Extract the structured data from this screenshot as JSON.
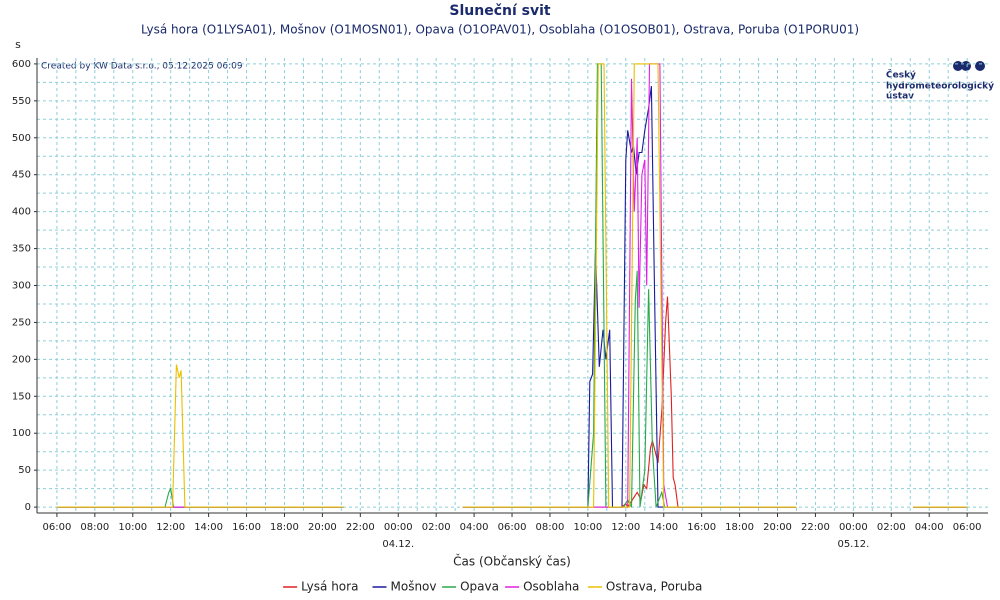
{
  "chart_data": {
    "type": "line",
    "title": "Sluneční svit",
    "subtitle": "Lysá hora (O1LYSA01), Mošnov (O1MOSN01), Opava (O1OPAV01), Osoblaha (O1OSOB01), Ostrava, Poruba (O1PORU01)",
    "y_unit": "s",
    "xlabel": "Čas (Občanský čas)",
    "annotation": "Created by KW Data s.r.o., 05.12.2025 06:09",
    "logo_lines": [
      "Český",
      "hydrometeorologický",
      "ústav"
    ],
    "grid": true,
    "legend": "bottom",
    "xlim": [
      4.95,
      55.1
    ],
    "ylim": [
      -8,
      608
    ],
    "yticks": [
      0,
      50,
      100,
      150,
      200,
      250,
      300,
      350,
      400,
      450,
      500,
      550,
      600
    ],
    "xticks": [
      {
        "value": 6,
        "label": "06:00"
      },
      {
        "value": 8,
        "label": "08:00"
      },
      {
        "value": 10,
        "label": "10:00"
      },
      {
        "value": 12,
        "label": "12:00"
      },
      {
        "value": 14,
        "label": "14:00"
      },
      {
        "value": 16,
        "label": "16:00"
      },
      {
        "value": 18,
        "label": "18:00"
      },
      {
        "value": 20,
        "label": "20:00"
      },
      {
        "value": 22,
        "label": "22:00"
      },
      {
        "value": 24,
        "label": "00:00"
      },
      {
        "value": 26,
        "label": "02:00"
      },
      {
        "value": 28,
        "label": "04:00"
      },
      {
        "value": 30,
        "label": "06:00"
      },
      {
        "value": 32,
        "label": "08:00"
      },
      {
        "value": 34,
        "label": "10:00"
      },
      {
        "value": 36,
        "label": "12:00"
      },
      {
        "value": 38,
        "label": "14:00"
      },
      {
        "value": 40,
        "label": "16:00"
      },
      {
        "value": 42,
        "label": "18:00"
      },
      {
        "value": 44,
        "label": "20:00"
      },
      {
        "value": 46,
        "label": "22:00"
      },
      {
        "value": 48,
        "label": "00:00"
      },
      {
        "value": 50,
        "label": "02:00"
      },
      {
        "value": 52,
        "label": "04:00"
      },
      {
        "value": 54,
        "label": "06:00"
      }
    ],
    "xdate_ticks": [
      {
        "value": 24,
        "label": "04.12."
      },
      {
        "value": 48,
        "label": "05.12."
      }
    ],
    "series": [
      {
        "name": "Lysá hora",
        "color": "#e02020",
        "x": [
          6,
          21.1,
          24,
          27.4,
          35.8,
          36.0,
          36.1,
          36.6,
          36.8,
          36.95,
          37.1,
          37.3,
          37.4,
          37.55,
          37.7,
          37.9,
          38.1,
          38.2,
          38.4,
          38.5,
          38.6,
          38.75,
          45,
          48,
          51.15,
          54
        ],
        "values": [
          0,
          0,
          null,
          0,
          0,
          5,
          0,
          20,
          10,
          30,
          25,
          80,
          90,
          75,
          60,
          130,
          250,
          285,
          150,
          40,
          30,
          0,
          0,
          null,
          0,
          0
        ]
      },
      {
        "name": "Mošnov",
        "color": "#1a1a9c",
        "x": [
          6,
          21.1,
          24,
          27.4,
          34.0,
          34.1,
          34.25,
          34.4,
          34.6,
          34.8,
          34.95,
          35.15,
          35.3,
          35.8,
          36.0,
          36.1,
          36.3,
          36.4,
          36.55,
          36.7,
          36.85,
          37.0,
          37.2,
          37.35,
          37.5,
          37.7,
          45,
          48,
          51.15,
          54
        ],
        "values": [
          0,
          0,
          null,
          0,
          0,
          170,
          180,
          350,
          190,
          240,
          200,
          240,
          0,
          0,
          470,
          510,
          480,
          490,
          450,
          480,
          480,
          510,
          540,
          570,
          320,
          0,
          0,
          null,
          0,
          0
        ]
      },
      {
        "name": "Opava",
        "color": "#2aa84a",
        "x": [
          6,
          11.7,
          11.9,
          12.0,
          12.15,
          21.1,
          24,
          27.4,
          34.0,
          34.3,
          34.5,
          34.7,
          34.95,
          35.9,
          36.1,
          36.3,
          36.5,
          36.6,
          36.75,
          37.0,
          37.2,
          37.4,
          37.6,
          37.9,
          38.05,
          45,
          48,
          51.15,
          54
        ],
        "values": [
          0,
          0,
          20,
          25,
          0,
          0,
          null,
          0,
          0,
          100,
          600,
          600,
          0,
          0,
          10,
          0,
          280,
          320,
          0,
          50,
          295,
          80,
          0,
          20,
          0,
          0,
          null,
          0,
          0
        ]
      },
      {
        "name": "Osoblaha",
        "color": "#e020e0",
        "x": [
          6,
          21.1,
          24,
          27.4,
          36.1,
          36.3,
          36.45,
          36.6,
          36.7,
          36.85,
          37.0,
          37.1,
          37.25,
          37.8,
          38.0,
          38.2,
          45,
          48,
          51.15,
          54
        ],
        "values": [
          0,
          0,
          null,
          0,
          0,
          580,
          400,
          500,
          270,
          450,
          470,
          300,
          600,
          600,
          30,
          0,
          0,
          null,
          0,
          0
        ]
      },
      {
        "name": "Ostrava, Poruba",
        "color": "#e8c000",
        "x": [
          6,
          12.1,
          12.3,
          12.45,
          12.55,
          12.75,
          21.1,
          24,
          27.4,
          34.3,
          34.55,
          34.85,
          35.1,
          36.2,
          36.45,
          37.7,
          38.0,
          45,
          48,
          51.15,
          54
        ],
        "values": [
          0,
          0,
          193,
          175,
          185,
          0,
          0,
          null,
          0,
          0,
          600,
          600,
          0,
          0,
          600,
          600,
          0,
          0,
          null,
          0,
          0
        ]
      }
    ]
  }
}
